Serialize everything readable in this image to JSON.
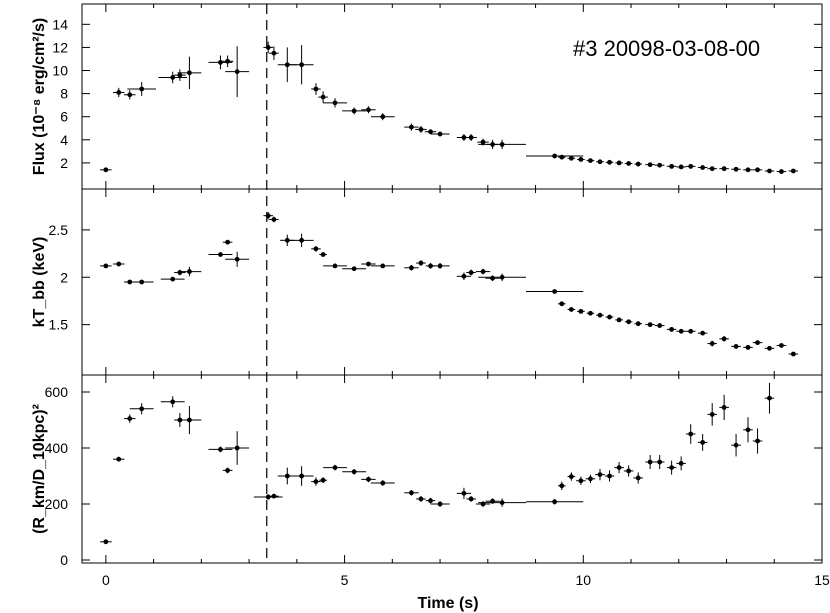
{
  "chart_data": {
    "type": "scatter",
    "annotation": "#3 20098-03-08-00",
    "xlabel": "Time (s)",
    "xlim": [
      -0.5,
      15
    ],
    "x_ticks": [
      0,
      5,
      10,
      15
    ],
    "burst_peak_time": 3.37,
    "panels": [
      {
        "ylabel": "Flux (10⁻⁸ erg/cm²/s)",
        "ylim": [
          0,
          15.5
        ],
        "y_ticks": [
          2,
          4,
          6,
          8,
          10,
          12,
          14
        ],
        "points": [
          {
            "x": 0.0,
            "y": 1.4,
            "xerr": 0.12,
            "yerr": 0.15
          },
          {
            "x": 0.27,
            "y": 8.1,
            "xerr": 0.12,
            "yerr": 0.4
          },
          {
            "x": 0.5,
            "y": 7.9,
            "xerr": 0.12,
            "yerr": 0.4
          },
          {
            "x": 0.75,
            "y": 8.4,
            "xerr": 0.3,
            "yerr": 0.6
          },
          {
            "x": 1.4,
            "y": 9.4,
            "xerr": 0.3,
            "yerr": 0.5
          },
          {
            "x": 1.55,
            "y": 9.6,
            "xerr": 0.12,
            "yerr": 0.5
          },
          {
            "x": 1.75,
            "y": 9.8,
            "xerr": 0.25,
            "yerr": 1.4
          },
          {
            "x": 2.4,
            "y": 10.7,
            "xerr": 0.25,
            "yerr": 0.6
          },
          {
            "x": 2.55,
            "y": 10.8,
            "xerr": 0.12,
            "yerr": 0.5
          },
          {
            "x": 2.75,
            "y": 9.9,
            "xerr": 0.25,
            "yerr": 2.2
          },
          {
            "x": 3.4,
            "y": 12.0,
            "xerr": 0.1,
            "yerr": 0.5
          },
          {
            "x": 3.52,
            "y": 11.5,
            "xerr": 0.1,
            "yerr": 0.6
          },
          {
            "x": 3.8,
            "y": 10.5,
            "xerr": 0.2,
            "yerr": 1.5
          },
          {
            "x": 4.1,
            "y": 10.5,
            "xerr": 0.25,
            "yerr": 1.7
          },
          {
            "x": 4.4,
            "y": 8.4,
            "xerr": 0.1,
            "yerr": 0.5
          },
          {
            "x": 4.55,
            "y": 7.7,
            "xerr": 0.1,
            "yerr": 0.5
          },
          {
            "x": 4.8,
            "y": 7.2,
            "xerr": 0.25,
            "yerr": 0.4
          },
          {
            "x": 5.2,
            "y": 6.5,
            "xerr": 0.25,
            "yerr": 0.3
          },
          {
            "x": 5.5,
            "y": 6.6,
            "xerr": 0.15,
            "yerr": 0.3
          },
          {
            "x": 5.8,
            "y": 6.0,
            "xerr": 0.25,
            "yerr": 0.3
          },
          {
            "x": 6.4,
            "y": 5.1,
            "xerr": 0.15,
            "yerr": 0.3
          },
          {
            "x": 6.6,
            "y": 4.9,
            "xerr": 0.12,
            "yerr": 0.3
          },
          {
            "x": 6.8,
            "y": 4.7,
            "xerr": 0.12,
            "yerr": 0.2
          },
          {
            "x": 7.0,
            "y": 4.5,
            "xerr": 0.2,
            "yerr": 0.2
          },
          {
            "x": 7.5,
            "y": 4.2,
            "xerr": 0.15,
            "yerr": 0.3
          },
          {
            "x": 7.65,
            "y": 4.2,
            "xerr": 0.12,
            "yerr": 0.3
          },
          {
            "x": 7.9,
            "y": 3.8,
            "xerr": 0.12,
            "yerr": 0.3
          },
          {
            "x": 8.1,
            "y": 3.6,
            "xerr": 0.12,
            "yerr": 0.4
          },
          {
            "x": 8.3,
            "y": 3.6,
            "xerr": 0.5,
            "yerr": 0.4
          },
          {
            "x": 9.4,
            "y": 2.6,
            "xerr": 0.6,
            "yerr": 0.2
          },
          {
            "x": 9.55,
            "y": 2.5,
            "xerr": 0.08,
            "yerr": 0.15
          },
          {
            "x": 9.75,
            "y": 2.4,
            "xerr": 0.08,
            "yerr": 0.12
          },
          {
            "x": 9.95,
            "y": 2.3,
            "xerr": 0.08,
            "yerr": 0.12
          },
          {
            "x": 10.15,
            "y": 2.2,
            "xerr": 0.08,
            "yerr": 0.12
          },
          {
            "x": 10.35,
            "y": 2.1,
            "xerr": 0.08,
            "yerr": 0.12
          },
          {
            "x": 10.55,
            "y": 2.05,
            "xerr": 0.08,
            "yerr": 0.12
          },
          {
            "x": 10.75,
            "y": 2.0,
            "xerr": 0.08,
            "yerr": 0.12
          },
          {
            "x": 10.95,
            "y": 1.95,
            "xerr": 0.08,
            "yerr": 0.12
          },
          {
            "x": 11.15,
            "y": 1.9,
            "xerr": 0.08,
            "yerr": 0.12
          },
          {
            "x": 11.4,
            "y": 1.85,
            "xerr": 0.1,
            "yerr": 0.12
          },
          {
            "x": 11.6,
            "y": 1.8,
            "xerr": 0.1,
            "yerr": 0.12
          },
          {
            "x": 11.85,
            "y": 1.7,
            "xerr": 0.1,
            "yerr": 0.12
          },
          {
            "x": 12.05,
            "y": 1.65,
            "xerr": 0.1,
            "yerr": 0.12
          },
          {
            "x": 12.25,
            "y": 1.7,
            "xerr": 0.1,
            "yerr": 0.12
          },
          {
            "x": 12.5,
            "y": 1.6,
            "xerr": 0.1,
            "yerr": 0.12
          },
          {
            "x": 12.7,
            "y": 1.5,
            "xerr": 0.1,
            "yerr": 0.12
          },
          {
            "x": 12.95,
            "y": 1.5,
            "xerr": 0.1,
            "yerr": 0.12
          },
          {
            "x": 13.2,
            "y": 1.45,
            "xerr": 0.1,
            "yerr": 0.12
          },
          {
            "x": 13.45,
            "y": 1.4,
            "xerr": 0.1,
            "yerr": 0.12
          },
          {
            "x": 13.65,
            "y": 1.4,
            "xerr": 0.1,
            "yerr": 0.12
          },
          {
            "x": 13.9,
            "y": 1.3,
            "xerr": 0.1,
            "yerr": 0.12
          },
          {
            "x": 14.15,
            "y": 1.25,
            "xerr": 0.1,
            "yerr": 0.12
          },
          {
            "x": 14.4,
            "y": 1.3,
            "xerr": 0.1,
            "yerr": 0.12
          }
        ]
      },
      {
        "ylabel": "kT_bb (keV)",
        "ylim": [
          1.0,
          2.9
        ],
        "y_ticks": [
          1.5,
          2,
          2.5
        ],
        "y_tick_labels": [
          "1.5",
          "2",
          "2.5"
        ],
        "points": [
          {
            "x": 0.0,
            "y": 2.12,
            "xerr": 0.12,
            "yerr": 0.02
          },
          {
            "x": 0.27,
            "y": 2.14,
            "xerr": 0.12,
            "yerr": 0.02
          },
          {
            "x": 0.5,
            "y": 1.95,
            "xerr": 0.12,
            "yerr": 0.02
          },
          {
            "x": 0.75,
            "y": 1.95,
            "xerr": 0.25,
            "yerr": 0.02
          },
          {
            "x": 1.4,
            "y": 1.98,
            "xerr": 0.25,
            "yerr": 0.02
          },
          {
            "x": 1.55,
            "y": 2.05,
            "xerr": 0.12,
            "yerr": 0.03
          },
          {
            "x": 1.75,
            "y": 2.06,
            "xerr": 0.25,
            "yerr": 0.05
          },
          {
            "x": 2.4,
            "y": 2.24,
            "xerr": 0.25,
            "yerr": 0.02
          },
          {
            "x": 2.55,
            "y": 2.37,
            "xerr": 0.1,
            "yerr": 0.02
          },
          {
            "x": 2.75,
            "y": 2.19,
            "xerr": 0.25,
            "yerr": 0.08
          },
          {
            "x": 3.4,
            "y": 2.65,
            "xerr": 0.1,
            "yerr": 0.04
          },
          {
            "x": 3.52,
            "y": 2.61,
            "xerr": 0.1,
            "yerr": 0.03
          },
          {
            "x": 3.8,
            "y": 2.39,
            "xerr": 0.15,
            "yerr": 0.06
          },
          {
            "x": 4.1,
            "y": 2.39,
            "xerr": 0.25,
            "yerr": 0.07
          },
          {
            "x": 4.4,
            "y": 2.3,
            "xerr": 0.1,
            "yerr": 0.03
          },
          {
            "x": 4.55,
            "y": 2.24,
            "xerr": 0.08,
            "yerr": 0.02
          },
          {
            "x": 4.8,
            "y": 2.12,
            "xerr": 0.25,
            "yerr": 0.02
          },
          {
            "x": 5.2,
            "y": 2.09,
            "xerr": 0.25,
            "yerr": 0.02
          },
          {
            "x": 5.5,
            "y": 2.14,
            "xerr": 0.15,
            "yerr": 0.02
          },
          {
            "x": 5.8,
            "y": 2.12,
            "xerr": 0.25,
            "yerr": 0.02
          },
          {
            "x": 6.4,
            "y": 2.1,
            "xerr": 0.15,
            "yerr": 0.03
          },
          {
            "x": 6.6,
            "y": 2.15,
            "xerr": 0.1,
            "yerr": 0.03
          },
          {
            "x": 6.8,
            "y": 2.12,
            "xerr": 0.1,
            "yerr": 0.03
          },
          {
            "x": 7.0,
            "y": 2.12,
            "xerr": 0.2,
            "yerr": 0.03
          },
          {
            "x": 7.5,
            "y": 2.01,
            "xerr": 0.15,
            "yerr": 0.04
          },
          {
            "x": 7.65,
            "y": 2.05,
            "xerr": 0.1,
            "yerr": 0.03
          },
          {
            "x": 7.9,
            "y": 2.06,
            "xerr": 0.15,
            "yerr": 0.03
          },
          {
            "x": 8.1,
            "y": 1.99,
            "xerr": 0.15,
            "yerr": 0.03
          },
          {
            "x": 8.3,
            "y": 2.0,
            "xerr": 0.5,
            "yerr": 0.04
          },
          {
            "x": 9.4,
            "y": 1.85,
            "xerr": 0.6,
            "yerr": 0.02
          },
          {
            "x": 9.55,
            "y": 1.72,
            "xerr": 0.08,
            "yerr": 0.02
          },
          {
            "x": 9.75,
            "y": 1.66,
            "xerr": 0.08,
            "yerr": 0.02
          },
          {
            "x": 9.95,
            "y": 1.64,
            "xerr": 0.08,
            "yerr": 0.02
          },
          {
            "x": 10.15,
            "y": 1.62,
            "xerr": 0.08,
            "yerr": 0.02
          },
          {
            "x": 10.35,
            "y": 1.6,
            "xerr": 0.08,
            "yerr": 0.02
          },
          {
            "x": 10.55,
            "y": 1.58,
            "xerr": 0.08,
            "yerr": 0.02
          },
          {
            "x": 10.75,
            "y": 1.55,
            "xerr": 0.08,
            "yerr": 0.02
          },
          {
            "x": 10.95,
            "y": 1.53,
            "xerr": 0.08,
            "yerr": 0.02
          },
          {
            "x": 11.15,
            "y": 1.51,
            "xerr": 0.08,
            "yerr": 0.02
          },
          {
            "x": 11.4,
            "y": 1.5,
            "xerr": 0.1,
            "yerr": 0.02
          },
          {
            "x": 11.6,
            "y": 1.49,
            "xerr": 0.1,
            "yerr": 0.02
          },
          {
            "x": 11.85,
            "y": 1.45,
            "xerr": 0.1,
            "yerr": 0.02
          },
          {
            "x": 12.05,
            "y": 1.43,
            "xerr": 0.1,
            "yerr": 0.02
          },
          {
            "x": 12.25,
            "y": 1.43,
            "xerr": 0.1,
            "yerr": 0.02
          },
          {
            "x": 12.5,
            "y": 1.41,
            "xerr": 0.1,
            "yerr": 0.02
          },
          {
            "x": 12.7,
            "y": 1.3,
            "xerr": 0.1,
            "yerr": 0.03
          },
          {
            "x": 12.95,
            "y": 1.35,
            "xerr": 0.1,
            "yerr": 0.03
          },
          {
            "x": 13.2,
            "y": 1.27,
            "xerr": 0.1,
            "yerr": 0.02
          },
          {
            "x": 13.45,
            "y": 1.26,
            "xerr": 0.1,
            "yerr": 0.02
          },
          {
            "x": 13.65,
            "y": 1.31,
            "xerr": 0.1,
            "yerr": 0.02
          },
          {
            "x": 13.9,
            "y": 1.25,
            "xerr": 0.1,
            "yerr": 0.02
          },
          {
            "x": 14.15,
            "y": 1.28,
            "xerr": 0.1,
            "yerr": 0.02
          },
          {
            "x": 14.4,
            "y": 1.19,
            "xerr": 0.1,
            "yerr": 0.02
          }
        ]
      },
      {
        "ylabel": "(R_km/D_10kpc)²",
        "ylim": [
          0,
          650
        ],
        "y_ticks": [
          0,
          200,
          400,
          600
        ],
        "points": [
          {
            "x": 0.0,
            "y": 65,
            "xerr": 0.12,
            "yerr": 5
          },
          {
            "x": 0.27,
            "y": 360,
            "xerr": 0.12,
            "yerr": 8
          },
          {
            "x": 0.5,
            "y": 505,
            "xerr": 0.12,
            "yerr": 15
          },
          {
            "x": 0.75,
            "y": 540,
            "xerr": 0.25,
            "yerr": 20
          },
          {
            "x": 1.4,
            "y": 565,
            "xerr": 0.25,
            "yerr": 20
          },
          {
            "x": 1.55,
            "y": 500,
            "xerr": 0.12,
            "yerr": 25
          },
          {
            "x": 1.75,
            "y": 500,
            "xerr": 0.25,
            "yerr": 50
          },
          {
            "x": 2.4,
            "y": 395,
            "xerr": 0.25,
            "yerr": 10
          },
          {
            "x": 2.55,
            "y": 320,
            "xerr": 0.1,
            "yerr": 10
          },
          {
            "x": 2.75,
            "y": 400,
            "xerr": 0.25,
            "yerr": 60
          },
          {
            "x": 3.4,
            "y": 225,
            "xerr": 0.3,
            "yerr": 10
          },
          {
            "x": 3.52,
            "y": 228,
            "xerr": 0.1,
            "yerr": 8
          },
          {
            "x": 3.8,
            "y": 300,
            "xerr": 0.2,
            "yerr": 30
          },
          {
            "x": 4.1,
            "y": 300,
            "xerr": 0.25,
            "yerr": 35
          },
          {
            "x": 4.4,
            "y": 280,
            "xerr": 0.1,
            "yerr": 15
          },
          {
            "x": 4.55,
            "y": 285,
            "xerr": 0.08,
            "yerr": 10
          },
          {
            "x": 4.8,
            "y": 330,
            "xerr": 0.25,
            "yerr": 10
          },
          {
            "x": 5.2,
            "y": 315,
            "xerr": 0.25,
            "yerr": 10
          },
          {
            "x": 5.5,
            "y": 288,
            "xerr": 0.15,
            "yerr": 10
          },
          {
            "x": 5.8,
            "y": 275,
            "xerr": 0.25,
            "yerr": 10
          },
          {
            "x": 6.4,
            "y": 240,
            "xerr": 0.15,
            "yerr": 10
          },
          {
            "x": 6.6,
            "y": 218,
            "xerr": 0.1,
            "yerr": 10
          },
          {
            "x": 6.8,
            "y": 212,
            "xerr": 0.1,
            "yerr": 10
          },
          {
            "x": 7.0,
            "y": 200,
            "xerr": 0.2,
            "yerr": 10
          },
          {
            "x": 7.5,
            "y": 238,
            "xerr": 0.15,
            "yerr": 20
          },
          {
            "x": 7.65,
            "y": 218,
            "xerr": 0.1,
            "yerr": 10
          },
          {
            "x": 7.9,
            "y": 200,
            "xerr": 0.15,
            "yerr": 10
          },
          {
            "x": 8.1,
            "y": 210,
            "xerr": 0.15,
            "yerr": 10
          },
          {
            "x": 8.3,
            "y": 205,
            "xerr": 0.5,
            "yerr": 15
          },
          {
            "x": 9.4,
            "y": 208,
            "xerr": 0.6,
            "yerr": 10
          },
          {
            "x": 9.55,
            "y": 265,
            "xerr": 0.08,
            "yerr": 15
          },
          {
            "x": 9.75,
            "y": 298,
            "xerr": 0.08,
            "yerr": 15
          },
          {
            "x": 9.95,
            "y": 283,
            "xerr": 0.1,
            "yerr": 15
          },
          {
            "x": 10.15,
            "y": 290,
            "xerr": 0.1,
            "yerr": 15
          },
          {
            "x": 10.35,
            "y": 305,
            "xerr": 0.1,
            "yerr": 20
          },
          {
            "x": 10.55,
            "y": 300,
            "xerr": 0.1,
            "yerr": 20
          },
          {
            "x": 10.75,
            "y": 330,
            "xerr": 0.1,
            "yerr": 20
          },
          {
            "x": 10.95,
            "y": 318,
            "xerr": 0.1,
            "yerr": 20
          },
          {
            "x": 11.15,
            "y": 293,
            "xerr": 0.1,
            "yerr": 20
          },
          {
            "x": 11.4,
            "y": 350,
            "xerr": 0.1,
            "yerr": 25
          },
          {
            "x": 11.6,
            "y": 350,
            "xerr": 0.1,
            "yerr": 25
          },
          {
            "x": 11.85,
            "y": 330,
            "xerr": 0.1,
            "yerr": 25
          },
          {
            "x": 12.05,
            "y": 345,
            "xerr": 0.1,
            "yerr": 25
          },
          {
            "x": 12.25,
            "y": 450,
            "xerr": 0.1,
            "yerr": 35
          },
          {
            "x": 12.5,
            "y": 420,
            "xerr": 0.1,
            "yerr": 30
          },
          {
            "x": 12.7,
            "y": 520,
            "xerr": 0.1,
            "yerr": 40
          },
          {
            "x": 12.95,
            "y": 545,
            "xerr": 0.1,
            "yerr": 45
          },
          {
            "x": 13.2,
            "y": 410,
            "xerr": 0.1,
            "yerr": 40
          },
          {
            "x": 13.45,
            "y": 465,
            "xerr": 0.1,
            "yerr": 45
          },
          {
            "x": 13.65,
            "y": 425,
            "xerr": 0.1,
            "yerr": 45
          },
          {
            "x": 13.9,
            "y": 578,
            "xerr": 0.1,
            "yerr": 55
          }
        ]
      }
    ]
  }
}
